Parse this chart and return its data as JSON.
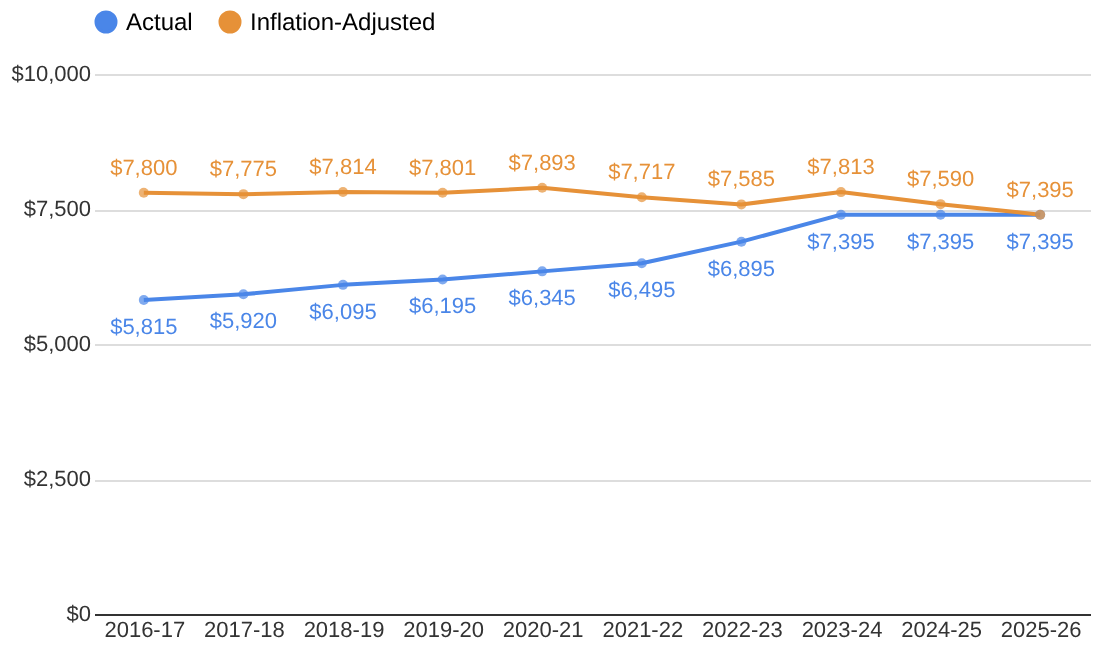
{
  "chart_data": {
    "type": "line",
    "categories": [
      "2016-17",
      "2017-18",
      "2018-19",
      "2019-20",
      "2020-21",
      "2021-22",
      "2022-23",
      "2023-24",
      "2024-25",
      "2025-26"
    ],
    "series": [
      {
        "name": "Actual",
        "color": "#4a86e8",
        "values": [
          5815,
          5920,
          6095,
          6195,
          6345,
          6495,
          6895,
          7395,
          7395,
          7395
        ],
        "value_labels": [
          "$5,815",
          "$5,920",
          "$6,095",
          "$6,195",
          "$6,345",
          "$6,495",
          "$6,895",
          "$7,395",
          "$7,395",
          "$7,395"
        ]
      },
      {
        "name": "Inflation-Adjusted",
        "color": "#e69138",
        "values": [
          7800,
          7775,
          7814,
          7801,
          7893,
          7717,
          7585,
          7813,
          7590,
          7395
        ],
        "value_labels": [
          "$7,800",
          "$7,775",
          "$7,814",
          "$7,801",
          "$7,893",
          "$7,717",
          "$7,585",
          "$7,813",
          "$7,590",
          "$7,395"
        ]
      }
    ],
    "ylim": [
      0,
      10000
    ],
    "yticks": [
      {
        "value": 0,
        "label": "$0"
      },
      {
        "value": 2500,
        "label": "$2,500"
      },
      {
        "value": 5000,
        "label": "$5,000"
      },
      {
        "value": 7500,
        "label": "$7,500"
      },
      {
        "value": 10000,
        "label": "$10,000"
      }
    ],
    "grid": "y",
    "legend": "top",
    "marker": "circle",
    "line_style": "solid"
  }
}
